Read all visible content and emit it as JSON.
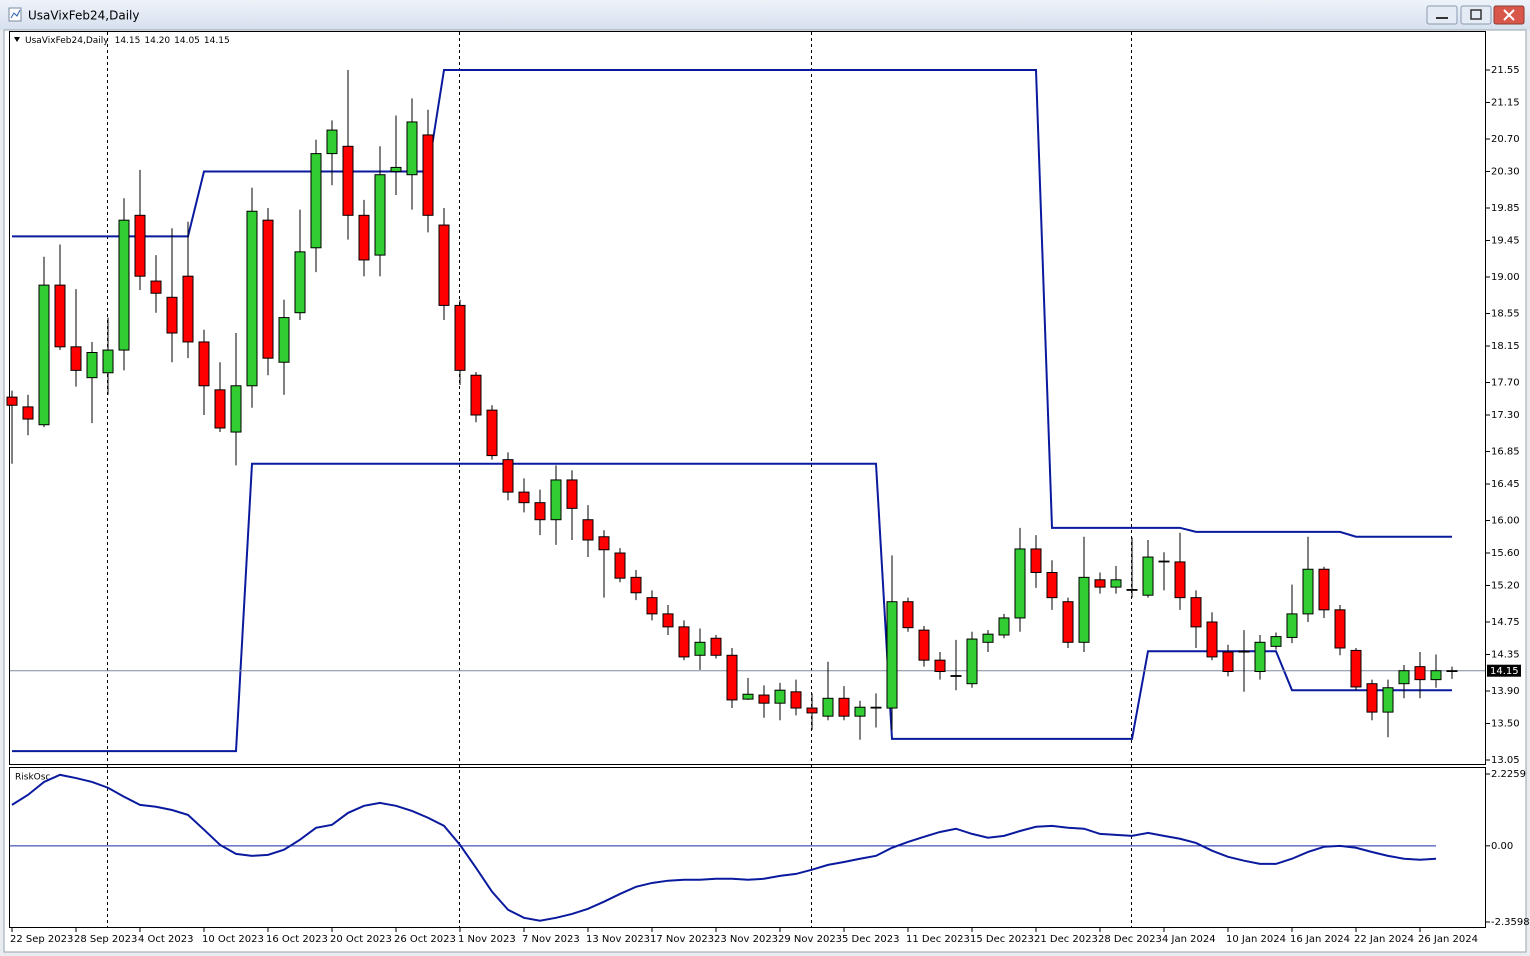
{
  "window": {
    "title": "UsaVixFeb24,Daily"
  },
  "chart_data": [
    {
      "type": "candlestick",
      "header": {
        "name": "UsaVixFeb24,Daily",
        "ohlc": [
          "14.15",
          "14.20",
          "14.05",
          "14.15"
        ]
      },
      "categories": [
        "22 Sep 2023",
        null,
        null,
        null,
        "28 Sep 2023",
        null,
        null,
        null,
        "4 Oct 2023",
        null,
        null,
        null,
        "10 Oct 2023",
        null,
        null,
        null,
        "16 Oct 2023",
        null,
        null,
        null,
        "20 Oct 2023",
        null,
        null,
        null,
        "26 Oct 2023",
        null,
        null,
        null,
        "1 Nov 2023",
        null,
        null,
        null,
        "7 Nov 2023",
        null,
        null,
        null,
        "13 Nov 2023",
        null,
        null,
        null,
        "17 Nov 2023",
        null,
        null,
        null,
        "23 Nov 2023",
        null,
        null,
        null,
        "29 Nov 2023",
        null,
        null,
        null,
        "5 Dec 2023",
        null,
        null,
        null,
        "11 Dec 2023",
        null,
        null,
        null,
        "15 Dec 2023",
        null,
        null,
        null,
        "21 Dec 2023",
        null,
        null,
        null,
        "28 Dec 2023",
        null,
        null,
        null,
        "4 Jan 2024",
        null,
        null,
        null,
        "10 Jan 2024",
        null,
        null,
        null,
        "16 Jan 2024",
        null,
        null,
        null,
        "22 Jan 2024",
        null,
        null,
        null,
        "26 Jan 2024",
        null,
        null
      ],
      "open": [
        17.52,
        17.4,
        17.18,
        18.9,
        18.14,
        17.76,
        17.82,
        18.1,
        19.76,
        18.95,
        18.75,
        19.01,
        18.2,
        17.61,
        17.09,
        17.66,
        19.7,
        17.95,
        18.56,
        19.36,
        20.52,
        20.61,
        19.76,
        19.27,
        20.3,
        20.26,
        20.75,
        19.64,
        18.65,
        17.79,
        17.36,
        16.75,
        16.35,
        16.22,
        16.01,
        16.5,
        16.01,
        15.8,
        15.6,
        15.3,
        15.05,
        14.85,
        14.69,
        14.34,
        14.55,
        14.34,
        13.8,
        13.85,
        13.75,
        13.89,
        13.69,
        13.59,
        13.81,
        13.59,
        13.69,
        13.69,
        15.0,
        14.65,
        14.28,
        14.09,
        13.99,
        14.5,
        14.59,
        14.8,
        15.65,
        15.36,
        15.0,
        14.5,
        15.27,
        15.18,
        15.15,
        15.08,
        15.49,
        15.49,
        15.05,
        14.75,
        14.38,
        14.38,
        14.14,
        14.45,
        14.56,
        14.85,
        15.4,
        14.9,
        14.4,
        13.99,
        13.64,
        13.99,
        14.2,
        14.04,
        14.15
      ],
      "high": [
        17.6,
        17.55,
        19.25,
        19.4,
        18.85,
        18.2,
        18.5,
        19.97,
        20.32,
        19.27,
        19.6,
        19.68,
        18.35,
        17.95,
        18.31,
        20.1,
        19.85,
        18.72,
        19.83,
        20.69,
        20.93,
        21.55,
        19.95,
        20.61,
        20.99,
        21.2,
        21.06,
        19.85,
        18.72,
        17.83,
        17.42,
        16.84,
        16.52,
        16.38,
        16.68,
        16.62,
        16.19,
        15.88,
        15.66,
        15.39,
        15.14,
        14.96,
        14.77,
        14.67,
        14.59,
        14.43,
        14.06,
        13.97,
        14.0,
        14.04,
        13.87,
        14.26,
        13.96,
        13.78,
        13.87,
        15.57,
        15.05,
        14.7,
        14.38,
        14.53,
        14.63,
        14.65,
        14.85,
        15.91,
        15.82,
        15.51,
        15.05,
        15.8,
        15.36,
        15.44,
        15.79,
        15.76,
        15.61,
        15.85,
        15.14,
        14.87,
        14.47,
        14.65,
        14.59,
        14.62,
        15.21,
        15.8,
        15.43,
        14.96,
        14.43,
        14.04,
        14.04,
        14.22,
        14.38,
        14.35,
        14.2
      ],
      "low": [
        16.7,
        17.05,
        17.15,
        18.1,
        17.65,
        17.2,
        17.55,
        17.85,
        18.84,
        18.56,
        17.95,
        18.0,
        17.3,
        17.09,
        16.68,
        17.39,
        17.79,
        17.55,
        18.47,
        19.06,
        20.13,
        19.46,
        19.01,
        19.01,
        20.01,
        19.83,
        19.55,
        18.47,
        17.67,
        17.21,
        16.75,
        16.25,
        16.1,
        15.82,
        15.7,
        15.76,
        15.55,
        15.05,
        15.24,
        15.02,
        14.77,
        14.59,
        14.28,
        14.16,
        14.3,
        13.69,
        13.79,
        13.57,
        13.54,
        13.6,
        13.42,
        13.54,
        13.54,
        13.3,
        13.45,
        13.42,
        14.63,
        14.2,
        14.04,
        13.91,
        13.94,
        14.38,
        14.55,
        14.63,
        15.17,
        14.9,
        14.43,
        14.38,
        15.1,
        15.1,
        15.05,
        15.05,
        15.14,
        14.9,
        14.43,
        14.28,
        14.08,
        13.89,
        14.04,
        14.41,
        14.49,
        14.75,
        14.8,
        14.34,
        13.91,
        13.54,
        13.33,
        13.81,
        13.81,
        13.94,
        14.05
      ],
      "close": [
        17.42,
        17.25,
        18.9,
        18.14,
        17.85,
        18.07,
        18.1,
        19.7,
        19.01,
        18.8,
        18.31,
        18.2,
        17.66,
        17.14,
        17.66,
        19.81,
        18.0,
        18.5,
        19.31,
        20.52,
        20.81,
        19.76,
        19.21,
        20.26,
        20.35,
        20.91,
        19.76,
        18.65,
        17.85,
        17.3,
        16.8,
        16.35,
        16.22,
        16.01,
        16.5,
        16.15,
        15.76,
        15.64,
        15.29,
        15.11,
        14.85,
        14.69,
        14.32,
        14.5,
        14.34,
        13.79,
        13.86,
        13.75,
        13.91,
        13.69,
        13.63,
        13.81,
        13.59,
        13.7,
        13.7,
        15.0,
        14.68,
        14.28,
        14.14,
        14.08,
        14.54,
        14.6,
        14.8,
        15.65,
        15.36,
        15.05,
        14.5,
        15.3,
        15.18,
        15.27,
        15.14,
        15.55,
        15.5,
        15.05,
        14.69,
        14.32,
        14.14,
        14.39,
        14.5,
        14.57,
        14.85,
        15.4,
        14.9,
        14.43,
        13.95,
        13.64,
        13.94,
        14.15,
        14.04,
        14.15,
        14.15
      ],
      "up_color": "#32cd32",
      "down_color": "#ff0000",
      "lines": [
        {
          "color": "#0a1a9e",
          "values": [
            19.5,
            19.5,
            19.5,
            19.5,
            19.5,
            19.5,
            19.5,
            19.5,
            19.5,
            19.5,
            19.5,
            19.5,
            20.3,
            20.3,
            20.3,
            20.3,
            20.3,
            20.3,
            20.3,
            20.3,
            20.3,
            20.3,
            20.3,
            20.3,
            20.3,
            20.3,
            20.3,
            21.55,
            21.55,
            21.55,
            21.55,
            21.55,
            21.55,
            21.55,
            21.55,
            21.55,
            21.55,
            21.55,
            21.55,
            21.55,
            21.55,
            21.55,
            21.55,
            21.55,
            21.55,
            21.55,
            21.55,
            21.55,
            21.55,
            21.55,
            21.55,
            21.55,
            21.55,
            21.55,
            21.55,
            21.55,
            21.55,
            21.55,
            21.55,
            21.55,
            21.55,
            21.55,
            21.55,
            21.55,
            21.55,
            15.91,
            15.91,
            15.91,
            15.91,
            15.91,
            15.91,
            15.91,
            15.91,
            15.91,
            15.86,
            15.86,
            15.86,
            15.86,
            15.86,
            15.86,
            15.86,
            15.86,
            15.86,
            15.86,
            15.8,
            15.8,
            15.8,
            15.8,
            15.8,
            15.8,
            15.8
          ]
        },
        {
          "color": "#0a1a9e",
          "values": [
            13.16,
            13.16,
            13.16,
            13.16,
            13.16,
            13.16,
            13.16,
            13.16,
            13.16,
            13.16,
            13.16,
            13.16,
            13.16,
            13.16,
            13.16,
            16.7,
            16.7,
            16.7,
            16.7,
            16.7,
            16.7,
            16.7,
            16.7,
            16.7,
            16.7,
            16.7,
            16.7,
            16.7,
            16.7,
            16.7,
            16.7,
            16.7,
            16.7,
            16.7,
            16.7,
            16.7,
            16.7,
            16.7,
            16.7,
            16.7,
            16.7,
            16.7,
            16.7,
            16.7,
            16.7,
            16.7,
            16.7,
            16.7,
            16.7,
            16.7,
            16.7,
            16.7,
            16.7,
            16.7,
            16.7,
            13.31,
            13.31,
            13.31,
            13.31,
            13.31,
            13.31,
            13.31,
            13.31,
            13.31,
            13.31,
            13.31,
            13.31,
            13.31,
            13.31,
            13.31,
            13.31,
            14.39,
            14.39,
            14.39,
            14.39,
            14.39,
            14.39,
            14.39,
            14.39,
            14.39,
            13.91,
            13.91,
            13.91,
            13.91,
            13.91,
            13.91,
            13.91,
            13.91,
            13.91,
            13.91,
            13.91
          ]
        }
      ],
      "last_price": 14.15,
      "ylim": [
        13.05,
        21.55
      ],
      "yticks": [
        13.05,
        {
          "value": 13.5,
          "label": "13.50"
        },
        {
          "value": 13.9,
          "label": "13.90"
        },
        14.35,
        14.75,
        {
          "value": 15.2,
          "label": "15.20"
        },
        {
          "value": 15.6,
          "label": "15.60"
        },
        {
          "value": 16,
          "label": "16.00"
        },
        16.45,
        16.85,
        {
          "value": 17.3,
          "label": "17.30"
        },
        {
          "value": 17.7,
          "label": "17.70"
        },
        18.15,
        18.55,
        {
          "value": 19,
          "label": "19.00"
        },
        19.45,
        19.85,
        {
          "value": 20.3,
          "label": "20.30"
        },
        {
          "value": 20.7,
          "label": "20.70"
        },
        21.15,
        21.55
      ]
    },
    {
      "type": "line",
      "title": "RiskOsc",
      "color": "#0a1a9e",
      "values": [
        1.27,
        1.58,
        1.98,
        2.2,
        2.1,
        1.98,
        1.8,
        1.52,
        1.27,
        1.21,
        1.11,
        0.96,
        0.5,
        0.03,
        -0.25,
        -0.31,
        -0.28,
        -0.12,
        0.19,
        0.56,
        0.65,
        1.02,
        1.24,
        1.33,
        1.24,
        1.08,
        0.87,
        0.62,
        0.03,
        -0.68,
        -1.42,
        -1.98,
        -2.23,
        -2.32,
        -2.23,
        -2.11,
        -1.95,
        -1.73,
        -1.49,
        -1.27,
        -1.15,
        -1.08,
        -1.05,
        -1.05,
        -1.02,
        -1.02,
        -1.05,
        -1.02,
        -0.93,
        -0.87,
        -0.74,
        -0.59,
        -0.5,
        -0.4,
        -0.31,
        -0.06,
        0.12,
        0.28,
        0.43,
        0.53,
        0.37,
        0.25,
        0.31,
        0.46,
        0.59,
        0.62,
        0.56,
        0.53,
        0.37,
        0.34,
        0.31,
        0.4,
        0.31,
        0.22,
        0.09,
        -0.15,
        -0.34,
        -0.46,
        -0.56,
        -0.56,
        -0.4,
        -0.19,
        -0.03,
        0.0,
        -0.06,
        -0.19,
        -0.31,
        -0.4,
        -0.43,
        -0.4,
        null
      ],
      "ylim": [
        -2.3598,
        2.2259
      ],
      "yticks": [
        -2.3598,
        {
          "value": 0,
          "label": "0.00"
        },
        2.2259
      ]
    }
  ]
}
